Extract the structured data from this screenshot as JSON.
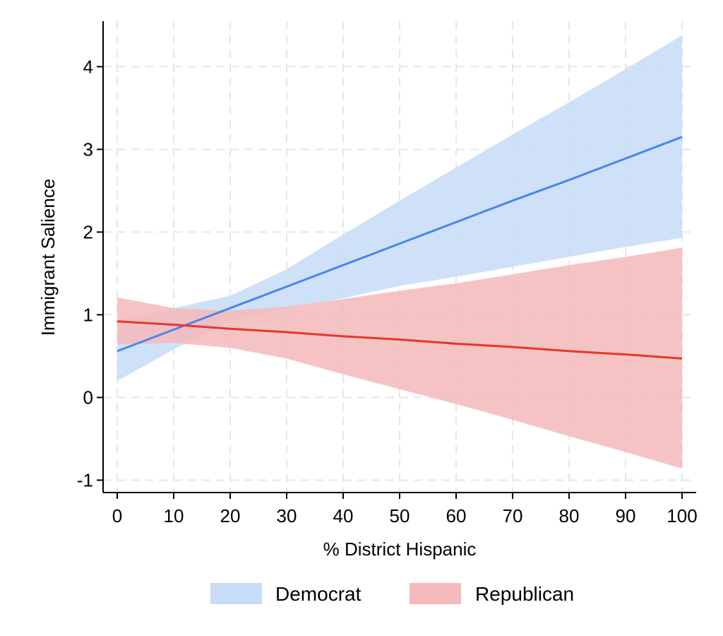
{
  "chart_data": {
    "type": "line",
    "title": "",
    "xlabel": "% District Hispanic",
    "ylabel": "Immigrant Salience",
    "xlim": [
      -2.5,
      102.5
    ],
    "ylim": [
      -1.15,
      4.55
    ],
    "x_ticks": [
      0,
      10,
      20,
      30,
      40,
      50,
      60,
      70,
      80,
      90,
      100
    ],
    "y_ticks": [
      -1,
      0,
      1,
      2,
      3,
      4
    ],
    "grid": true,
    "legend_position": "bottom",
    "series": [
      {
        "name": "Democrat",
        "color": "#4a86e8",
        "band_color": "#c7dcf7",
        "x": [
          0,
          10,
          20,
          30,
          40,
          50,
          60,
          70,
          80,
          90,
          100
        ],
        "y": [
          0.56,
          0.82,
          1.08,
          1.34,
          1.6,
          1.86,
          2.12,
          2.38,
          2.63,
          2.89,
          3.15
        ],
        "ci_lower": [
          0.2,
          0.58,
          0.93,
          1.08,
          1.2,
          1.35,
          1.46,
          1.58,
          1.7,
          1.82,
          1.93
        ],
        "ci_upper": [
          0.93,
          1.08,
          1.23,
          1.55,
          1.97,
          2.38,
          2.78,
          3.18,
          3.57,
          3.97,
          4.38
        ]
      },
      {
        "name": "Republican",
        "color": "#e8362a",
        "band_color": "#f4b9bb",
        "x": [
          0,
          10,
          20,
          30,
          40,
          50,
          60,
          70,
          80,
          90,
          100
        ],
        "y": [
          0.92,
          0.88,
          0.83,
          0.79,
          0.74,
          0.7,
          0.65,
          0.61,
          0.56,
          0.52,
          0.47
        ],
        "ci_lower": [
          0.64,
          0.66,
          0.6,
          0.47,
          0.28,
          0.1,
          -0.08,
          -0.27,
          -0.47,
          -0.66,
          -0.86
        ],
        "ci_upper": [
          1.21,
          1.08,
          1.05,
          1.1,
          1.19,
          1.29,
          1.38,
          1.49,
          1.6,
          1.7,
          1.81
        ]
      }
    ]
  }
}
